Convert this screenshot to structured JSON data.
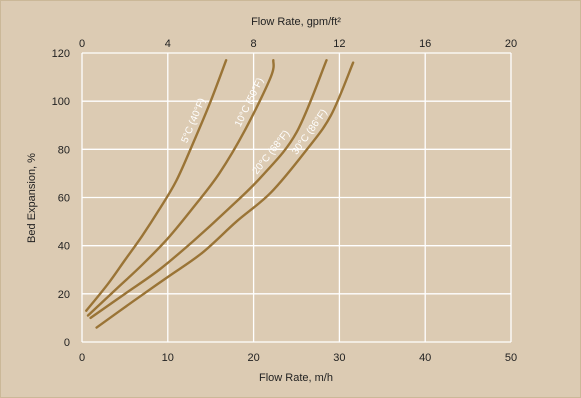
{
  "chart_data": {
    "type": "line",
    "xlabel": "Flow Rate, m/h",
    "ylabel": "Bed Expansion, %",
    "x2label": "Flow Rate, gpm/ft²",
    "xlim": [
      0,
      50
    ],
    "ylim": [
      0,
      120
    ],
    "x2lim": [
      0,
      20
    ],
    "xticks": [
      0,
      10,
      20,
      30,
      40,
      50
    ],
    "yticks": [
      0,
      20,
      40,
      60,
      80,
      100,
      120
    ],
    "x2ticks": [
      0,
      4,
      8,
      12,
      16,
      20
    ],
    "grid": true,
    "line_color": "#9a7436",
    "background_color": "#dccbb3",
    "series": [
      {
        "name": "5°C (40°F)",
        "x": [
          0.5,
          3,
          5,
          7,
          9,
          11,
          13,
          15,
          16.8
        ],
        "y": [
          13,
          24,
          34,
          44,
          55,
          67,
          83,
          100,
          117
        ]
      },
      {
        "name": "10°C (50°F)",
        "x": [
          0.7,
          4,
          7,
          10,
          13,
          16,
          19,
          22,
          22.3
        ],
        "y": [
          11,
          22,
          32,
          43,
          56,
          70,
          88,
          110,
          117
        ]
      },
      {
        "name": "20°C (68°F)",
        "x": [
          1,
          5,
          9,
          13,
          17,
          21,
          25,
          28.5
        ],
        "y": [
          10,
          20,
          30,
          42,
          55,
          69,
          87,
          117
        ]
      },
      {
        "name": "30°C (86°F)",
        "x": [
          1.7,
          6,
          10,
          14,
          18,
          22,
          26,
          29,
          31.6
        ],
        "y": [
          6,
          17,
          27,
          37,
          50,
          62,
          79,
          94,
          116
        ]
      }
    ]
  }
}
